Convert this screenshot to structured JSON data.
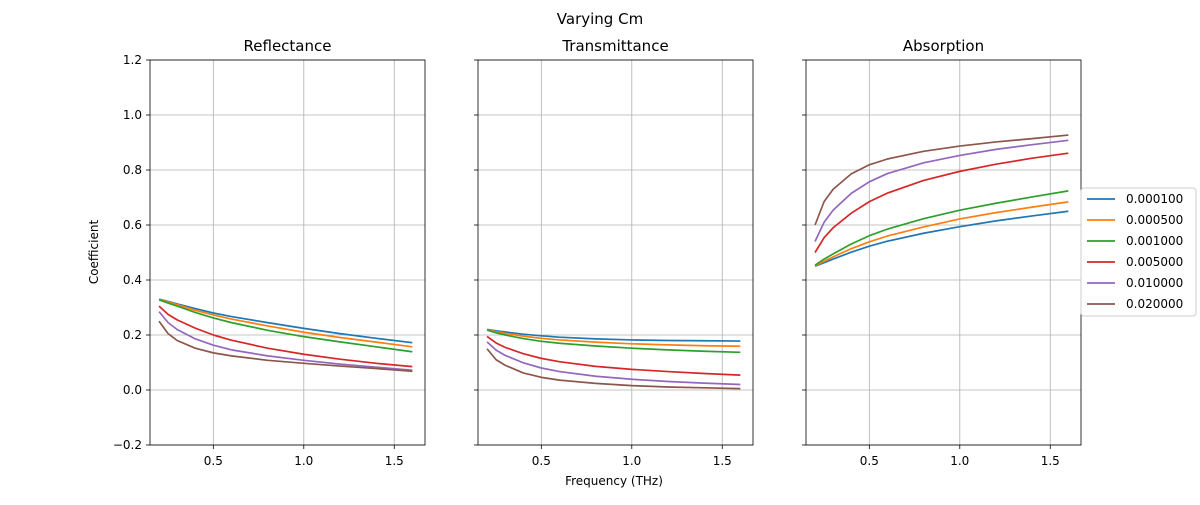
{
  "figure": {
    "title": "Varying Cm",
    "xlabel": "Frequency (THz)",
    "ylabel": "Coefficient"
  },
  "legend": {
    "placement": "right",
    "entries": [
      "0.000100",
      "0.000500",
      "0.001000",
      "0.005000",
      "0.010000",
      "0.020000"
    ]
  },
  "colors": [
    "#1f77b4",
    "#ff7f0e",
    "#2ca02c",
    "#d62728",
    "#9467bd",
    "#8c564b"
  ],
  "chart_data": [
    {
      "type": "line",
      "title": "Reflectance",
      "xlabel": "",
      "ylabel": "Coefficient",
      "xlim": [
        0.15,
        1.67
      ],
      "ylim": [
        -0.2,
        1.2
      ],
      "xticks": [
        0.5,
        1.0,
        1.5
      ],
      "yticks": [
        -0.2,
        0.0,
        0.2,
        0.4,
        0.6,
        0.8,
        1.0,
        1.2
      ],
      "xtick_labels": [
        "0.5",
        "1.0",
        "1.5"
      ],
      "ytick_labels": [
        "−0.2",
        "0.0",
        "0.2",
        "0.4",
        "0.6",
        "0.8",
        "1.0",
        "1.2"
      ],
      "grid": true,
      "x": [
        0.2,
        0.25,
        0.3,
        0.4,
        0.5,
        0.6,
        0.8,
        1.0,
        1.2,
        1.4,
        1.6
      ],
      "series": [
        {
          "name": "0.000100",
          "values": [
            0.33,
            0.322,
            0.313,
            0.296,
            0.28,
            0.267,
            0.245,
            0.224,
            0.205,
            0.188,
            0.172
          ]
        },
        {
          "name": "0.000500",
          "values": [
            0.329,
            0.32,
            0.31,
            0.29,
            0.273,
            0.258,
            0.233,
            0.21,
            0.191,
            0.174,
            0.157
          ]
        },
        {
          "name": "0.001000",
          "values": [
            0.328,
            0.316,
            0.305,
            0.282,
            0.262,
            0.245,
            0.217,
            0.194,
            0.175,
            0.157,
            0.139
          ]
        },
        {
          "name": "0.005000",
          "values": [
            0.305,
            0.275,
            0.255,
            0.225,
            0.2,
            0.181,
            0.152,
            0.13,
            0.112,
            0.097,
            0.085
          ]
        },
        {
          "name": "0.010000",
          "values": [
            0.285,
            0.245,
            0.22,
            0.186,
            0.163,
            0.146,
            0.124,
            0.108,
            0.094,
            0.083,
            0.072
          ]
        },
        {
          "name": "0.020000",
          "values": [
            0.25,
            0.205,
            0.18,
            0.152,
            0.135,
            0.124,
            0.108,
            0.097,
            0.087,
            0.078,
            0.068
          ]
        }
      ]
    },
    {
      "type": "line",
      "title": "Transmittance",
      "xlabel": "Frequency (THz)",
      "ylabel": "",
      "xlim": [
        0.15,
        1.67
      ],
      "ylim": [
        -0.2,
        1.2
      ],
      "xticks": [
        0.5,
        1.0,
        1.5
      ],
      "yticks": [
        -0.2,
        0.0,
        0.2,
        0.4,
        0.6,
        0.8,
        1.0,
        1.2
      ],
      "xtick_labels": [
        "0.5",
        "1.0",
        "1.5"
      ],
      "ytick_labels": [],
      "grid": true,
      "x": [
        0.2,
        0.25,
        0.3,
        0.4,
        0.5,
        0.6,
        0.8,
        1.0,
        1.2,
        1.4,
        1.6
      ],
      "series": [
        {
          "name": "0.000100",
          "values": [
            0.22,
            0.215,
            0.211,
            0.203,
            0.197,
            0.192,
            0.186,
            0.182,
            0.18,
            0.179,
            0.178
          ]
        },
        {
          "name": "0.000500",
          "values": [
            0.219,
            0.212,
            0.206,
            0.196,
            0.188,
            0.182,
            0.174,
            0.168,
            0.164,
            0.161,
            0.159
          ]
        },
        {
          "name": "0.001000",
          "values": [
            0.218,
            0.208,
            0.2,
            0.187,
            0.177,
            0.17,
            0.16,
            0.152,
            0.146,
            0.141,
            0.137
          ]
        },
        {
          "name": "0.005000",
          "values": [
            0.195,
            0.171,
            0.155,
            0.132,
            0.115,
            0.103,
            0.086,
            0.075,
            0.067,
            0.06,
            0.054
          ]
        },
        {
          "name": "0.010000",
          "values": [
            0.175,
            0.145,
            0.126,
            0.099,
            0.08,
            0.067,
            0.05,
            0.039,
            0.031,
            0.025,
            0.02
          ]
        },
        {
          "name": "0.020000",
          "values": [
            0.15,
            0.11,
            0.09,
            0.062,
            0.046,
            0.036,
            0.024,
            0.016,
            0.011,
            0.008,
            0.005
          ]
        }
      ]
    },
    {
      "type": "line",
      "title": "Absorption",
      "xlabel": "",
      "ylabel": "",
      "xlim": [
        0.15,
        1.67
      ],
      "ylim": [
        -0.2,
        1.2
      ],
      "xticks": [
        0.5,
        1.0,
        1.5
      ],
      "yticks": [
        -0.2,
        0.0,
        0.2,
        0.4,
        0.6,
        0.8,
        1.0,
        1.2
      ],
      "xtick_labels": [
        "0.5",
        "1.0",
        "1.5"
      ],
      "ytick_labels": [],
      "grid": true,
      "x": [
        0.2,
        0.25,
        0.3,
        0.4,
        0.5,
        0.6,
        0.8,
        1.0,
        1.2,
        1.4,
        1.6
      ],
      "series": [
        {
          "name": "0.000100",
          "values": [
            0.45,
            0.463,
            0.476,
            0.501,
            0.523,
            0.541,
            0.57,
            0.594,
            0.615,
            0.633,
            0.65
          ]
        },
        {
          "name": "0.000500",
          "values": [
            0.452,
            0.468,
            0.484,
            0.514,
            0.539,
            0.56,
            0.593,
            0.622,
            0.645,
            0.665,
            0.684
          ]
        },
        {
          "name": "0.001000",
          "values": [
            0.454,
            0.476,
            0.495,
            0.531,
            0.561,
            0.585,
            0.623,
            0.654,
            0.679,
            0.702,
            0.724
          ]
        },
        {
          "name": "0.005000",
          "values": [
            0.5,
            0.554,
            0.59,
            0.643,
            0.685,
            0.716,
            0.762,
            0.795,
            0.821,
            0.843,
            0.861
          ]
        },
        {
          "name": "0.010000",
          "values": [
            0.54,
            0.61,
            0.654,
            0.715,
            0.757,
            0.787,
            0.826,
            0.853,
            0.875,
            0.892,
            0.908
          ]
        },
        {
          "name": "0.020000",
          "values": [
            0.6,
            0.685,
            0.73,
            0.786,
            0.819,
            0.84,
            0.868,
            0.887,
            0.902,
            0.914,
            0.927
          ]
        }
      ]
    }
  ]
}
